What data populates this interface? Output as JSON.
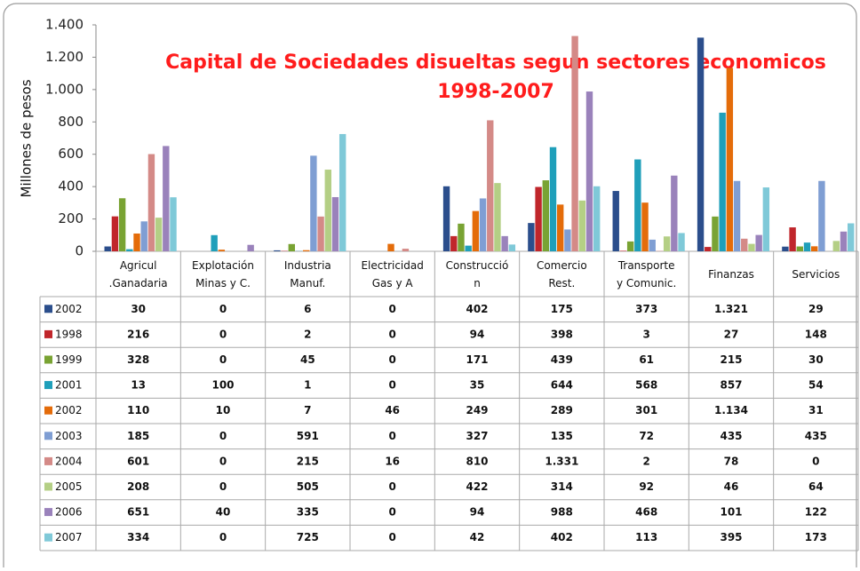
{
  "chart_data": {
    "type": "bar",
    "title": "Capital de Sociedades disueltas segun sectores economicos",
    "subtitle": "1998-2007",
    "y_label": "Millones de pesos",
    "categories": [
      "Agricul\n.Ganadaria",
      "Explotación\nMinas y C.",
      "Industria\nManuf.",
      "Electricidad\nGas y A",
      "Construcció\nn",
      "Comercio\nRest.",
      "Transporte\ny Comunic.",
      "Finanzas",
      "Servicios"
    ],
    "ylim": [
      0,
      1400
    ],
    "yticks": [
      0,
      200,
      400,
      600,
      800,
      {
        "value": 1000,
        "label": "1.000"
      },
      {
        "value": 1200,
        "label": "1.200"
      },
      {
        "value": 1400,
        "label": "1.400"
      }
    ],
    "grid": false,
    "series": [
      {
        "name": "2002",
        "color": "#2b4e8c",
        "values": [
          30,
          0,
          6,
          0,
          402,
          175,
          373,
          1321,
          29
        ],
        "value_labels": [
          "30",
          "0",
          "6",
          "0",
          "402",
          "175",
          "373",
          "1.321",
          "29"
        ]
      },
      {
        "name": "1998",
        "color": "#c0262b",
        "values": [
          216,
          0,
          2,
          0,
          94,
          398,
          3,
          27,
          148
        ]
      },
      {
        "name": "1999",
        "color": "#79a333",
        "values": [
          328,
          0,
          45,
          0,
          171,
          439,
          61,
          215,
          30
        ]
      },
      {
        "name": "2001",
        "color": "#1f9fba",
        "values": [
          13,
          100,
          1,
          0,
          35,
          644,
          568,
          857,
          54
        ]
      },
      {
        "name": "2002",
        "color": "#e46c0a",
        "values": [
          110,
          10,
          7,
          46,
          249,
          289,
          301,
          1134,
          31
        ],
        "value_labels": [
          "110",
          "10",
          "7",
          "46",
          "249",
          "289",
          "301",
          "1.134",
          "31"
        ]
      },
      {
        "name": "2003",
        "color": "#7f9ed3",
        "values": [
          185,
          0,
          591,
          0,
          327,
          135,
          72,
          435,
          435
        ]
      },
      {
        "name": "2004",
        "color": "#d48a87",
        "values": [
          601,
          0,
          215,
          16,
          810,
          1331,
          2,
          78,
          0
        ],
        "value_labels": [
          "601",
          "0",
          "215",
          "16",
          "810",
          "1.331",
          "2",
          "78",
          "0"
        ]
      },
      {
        "name": "2005",
        "color": "#b4cf85",
        "values": [
          208,
          0,
          505,
          0,
          422,
          314,
          92,
          46,
          64
        ]
      },
      {
        "name": "2006",
        "color": "#9a82bb",
        "values": [
          651,
          40,
          335,
          0,
          94,
          988,
          468,
          101,
          122
        ]
      },
      {
        "name": "2007",
        "color": "#7fc9d8",
        "values": [
          334,
          0,
          725,
          0,
          42,
          402,
          113,
          395,
          173
        ]
      }
    ]
  }
}
